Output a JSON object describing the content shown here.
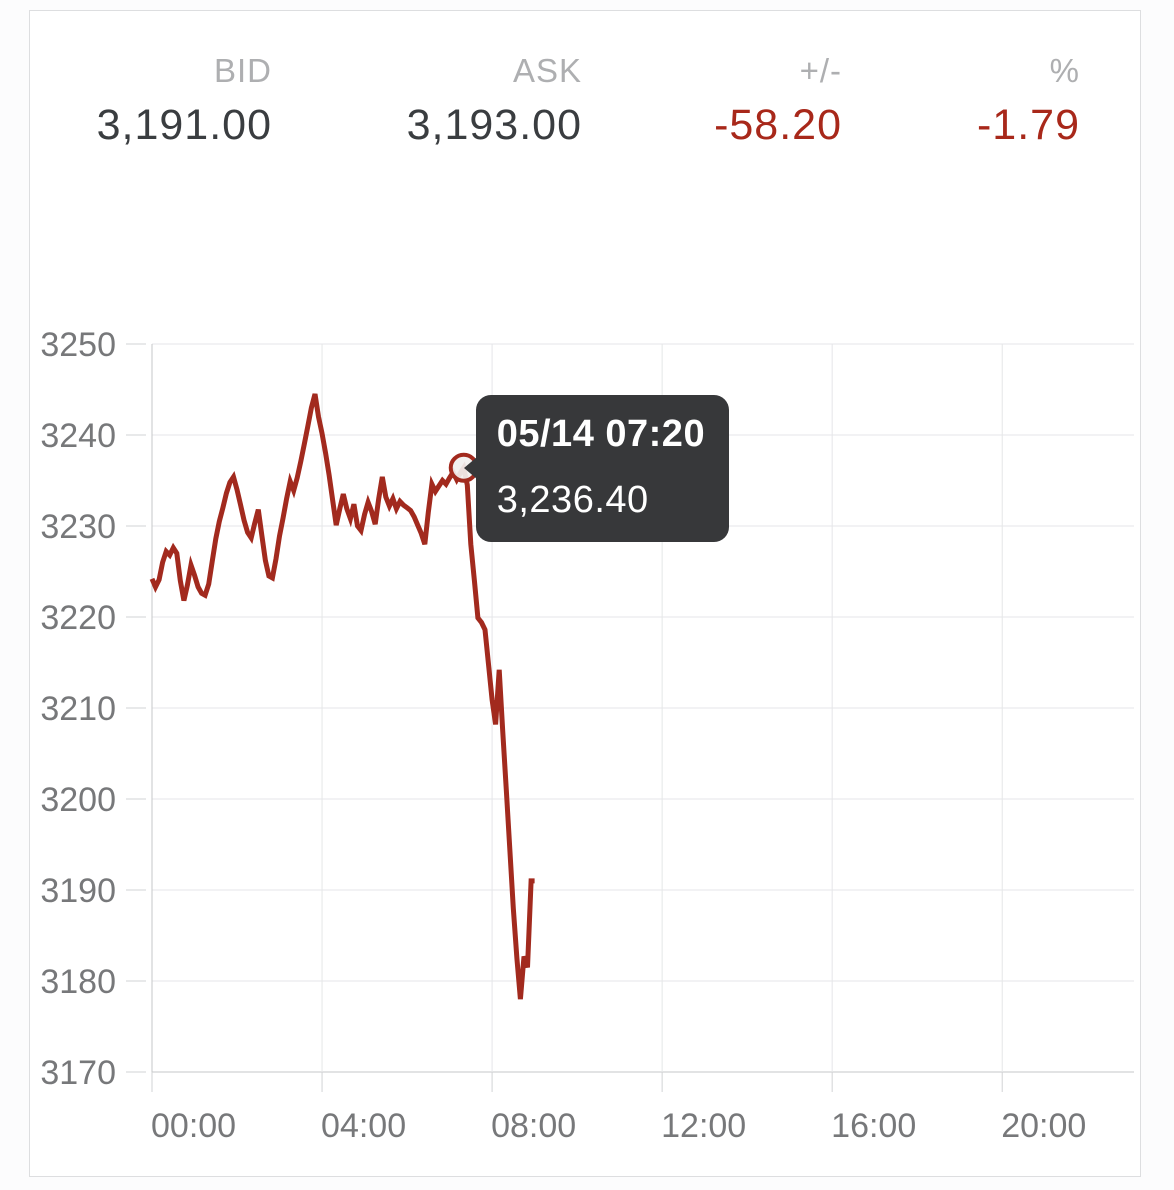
{
  "header": {
    "columns": [
      {
        "label": "BID",
        "value": "3,191.00",
        "negative": false
      },
      {
        "label": "ASK",
        "value": "3,193.00",
        "negative": false
      },
      {
        "label": "+/-",
        "value": "-58.20",
        "negative": true
      },
      {
        "label": "%",
        "value": "-1.79",
        "negative": true
      }
    ]
  },
  "tooltip": {
    "datetime": "05/14 07:20",
    "price": "3,236.40"
  },
  "colors": {
    "line": "#a22a1e",
    "negative_text": "#a8281a",
    "tooltip_bg": "#37383a",
    "grid": "#e5e6e8",
    "axis": "#c6c7c9",
    "tick_label": "#77787a",
    "header_label": "#aeafb1",
    "header_value": "#3a3d40",
    "marker_fill": "#f2f0ef"
  },
  "chart_data": {
    "type": "line",
    "title": "",
    "xlabel": "",
    "ylabel": "",
    "x_ticks": [
      "00:00",
      "04:00",
      "08:00",
      "12:00",
      "16:00",
      "20:00"
    ],
    "x_domain_hours": [
      0,
      23.1
    ],
    "y_ticks": [
      3250,
      3240,
      3230,
      3220,
      3210,
      3200,
      3190,
      3180,
      3170
    ],
    "ylim": [
      3170,
      3250
    ],
    "grid": true,
    "legend_position": "none",
    "highlight_point": {
      "time": "07:20",
      "value": 3236.4
    },
    "series": [
      {
        "name": "price",
        "points": [
          [
            "00:00",
            3224.2
          ],
          [
            "00:05",
            3223.3
          ],
          [
            "00:10",
            3224.1
          ],
          [
            "00:15",
            3226.0
          ],
          [
            "00:20",
            3227.2
          ],
          [
            "00:25",
            3226.8
          ],
          [
            "00:30",
            3227.6
          ],
          [
            "00:35",
            3227.0
          ],
          [
            "00:40",
            3224.0
          ],
          [
            "00:45",
            3221.8
          ],
          [
            "00:50",
            3223.5
          ],
          [
            "00:55",
            3225.7
          ],
          [
            "01:00",
            3224.6
          ],
          [
            "01:05",
            3223.3
          ],
          [
            "01:10",
            3222.6
          ],
          [
            "01:15",
            3222.4
          ],
          [
            "01:20",
            3223.6
          ],
          [
            "01:25",
            3226.1
          ],
          [
            "01:30",
            3228.6
          ],
          [
            "01:35",
            3230.5
          ],
          [
            "01:40",
            3232.0
          ],
          [
            "01:45",
            3233.6
          ],
          [
            "01:50",
            3234.8
          ],
          [
            "01:55",
            3235.4
          ],
          [
            "02:00",
            3234.0
          ],
          [
            "02:05",
            3232.3
          ],
          [
            "02:10",
            3230.6
          ],
          [
            "02:15",
            3229.3
          ],
          [
            "02:20",
            3228.7
          ],
          [
            "02:25",
            3230.3
          ],
          [
            "02:30",
            3231.8
          ],
          [
            "02:35",
            3229.0
          ],
          [
            "02:40",
            3226.2
          ],
          [
            "02:45",
            3224.5
          ],
          [
            "02:50",
            3224.3
          ],
          [
            "02:55",
            3226.4
          ],
          [
            "03:00",
            3228.9
          ],
          [
            "03:05",
            3230.9
          ],
          [
            "03:10",
            3233.0
          ],
          [
            "03:15",
            3234.9
          ],
          [
            "03:20",
            3233.9
          ],
          [
            "03:25",
            3235.3
          ],
          [
            "03:30",
            3237.1
          ],
          [
            "03:35",
            3239.0
          ],
          [
            "03:40",
            3241.0
          ],
          [
            "03:45",
            3243.0
          ],
          [
            "03:50",
            3244.5
          ],
          [
            "03:55",
            3242.0
          ],
          [
            "04:00",
            3240.2
          ],
          [
            "04:05",
            3238.0
          ],
          [
            "04:10",
            3235.6
          ],
          [
            "04:15",
            3232.8
          ],
          [
            "04:20",
            3230.1
          ],
          [
            "04:25",
            3231.9
          ],
          [
            "04:30",
            3233.5
          ],
          [
            "04:35",
            3231.9
          ],
          [
            "04:40",
            3230.8
          ],
          [
            "04:45",
            3232.4
          ],
          [
            "04:50",
            3230.0
          ],
          [
            "04:55",
            3229.5
          ],
          [
            "05:00",
            3231.3
          ],
          [
            "05:05",
            3232.6
          ],
          [
            "05:10",
            3231.6
          ],
          [
            "05:15",
            3230.2
          ],
          [
            "05:20",
            3233.0
          ],
          [
            "05:25",
            3235.4
          ],
          [
            "05:30",
            3233.2
          ],
          [
            "05:35",
            3232.2
          ],
          [
            "05:40",
            3233.0
          ],
          [
            "05:45",
            3231.9
          ],
          [
            "05:50",
            3232.7
          ],
          [
            "05:55",
            3232.3
          ],
          [
            "06:00",
            3232.0
          ],
          [
            "06:05",
            3231.7
          ],
          [
            "06:10",
            3231.0
          ],
          [
            "06:15",
            3230.1
          ],
          [
            "06:20",
            3229.2
          ],
          [
            "06:25",
            3228.0
          ],
          [
            "06:30",
            3231.5
          ],
          [
            "06:35",
            3234.6
          ],
          [
            "06:40",
            3233.8
          ],
          [
            "06:45",
            3234.4
          ],
          [
            "06:50",
            3235.0
          ],
          [
            "06:55",
            3234.6
          ],
          [
            "07:00",
            3235.3
          ],
          [
            "07:05",
            3235.9
          ],
          [
            "07:10",
            3235.1
          ],
          [
            "07:15",
            3235.8
          ],
          [
            "07:20",
            3236.4
          ],
          [
            "07:25",
            3234.5
          ],
          [
            "07:30",
            3228.0
          ],
          [
            "07:35",
            3224.0
          ],
          [
            "07:40",
            3219.9
          ],
          [
            "07:45",
            3219.4
          ],
          [
            "07:50",
            3218.6
          ],
          [
            "07:55",
            3214.8
          ],
          [
            "08:00",
            3210.9
          ],
          [
            "08:05",
            3208.2
          ],
          [
            "08:10",
            3214.2
          ],
          [
            "08:15",
            3207.5
          ],
          [
            "08:20",
            3201.0
          ],
          [
            "08:25",
            3194.5
          ],
          [
            "08:30",
            3188.0
          ],
          [
            "08:35",
            3182.5
          ],
          [
            "08:40",
            3178.0
          ],
          [
            "08:45",
            3182.7
          ],
          [
            "08:50",
            3181.5
          ],
          [
            "08:55",
            3191.0
          ],
          [
            "09:00",
            3191.0
          ]
        ]
      }
    ]
  }
}
